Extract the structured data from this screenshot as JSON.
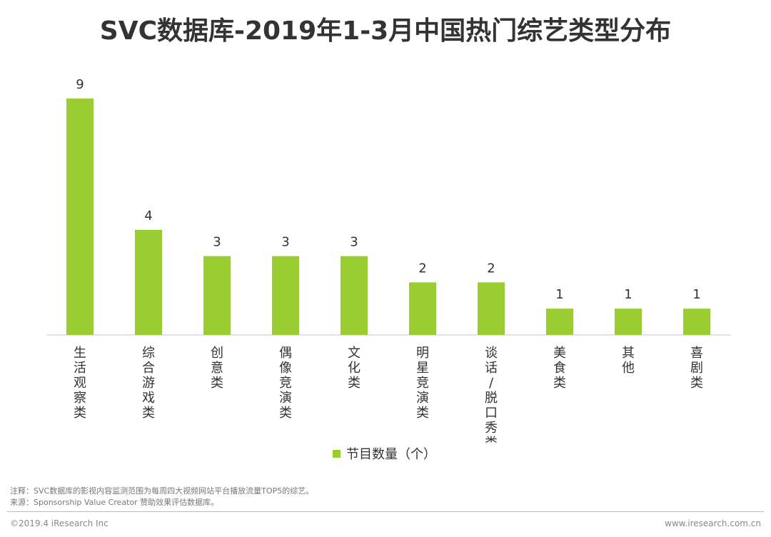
{
  "chart_data": {
    "type": "bar",
    "title": "SVC数据库-2019年1-3月中国热门综艺类型分布",
    "categories": [
      "生活观察类",
      "综合游戏类",
      "创意类",
      "偶像竞演类",
      "文化类",
      "明星竞演类",
      "谈话/脱口秀类",
      "美食类",
      "其他",
      "喜剧类"
    ],
    "series": [
      {
        "name": "节目数量（个）",
        "values": [
          9,
          4,
          3,
          3,
          3,
          2,
          2,
          1,
          1,
          1
        ]
      }
    ],
    "ylim": [
      0,
      9
    ],
    "xlabel": "",
    "ylabel": "",
    "grid": false,
    "legend": "bottom-center",
    "bar_color": "#9acd32",
    "label_orientation": "vertical"
  },
  "notes": {
    "note": "注释：SVC数据库的影视内容监测范围为每周四大视频网站平台播放流量TOP5的综艺。",
    "source": "来源：Sponsorship Value Creator 赞助效果评估数据库。"
  },
  "footer": {
    "copyright": "©2019.4 iResearch Inc",
    "website": "www.iresearch.com.cn"
  }
}
